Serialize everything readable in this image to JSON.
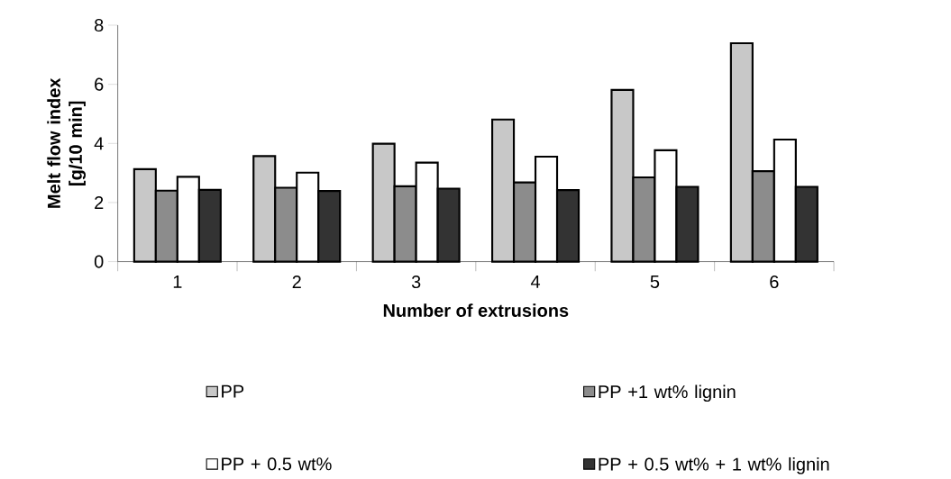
{
  "chart_data": {
    "type": "bar",
    "xlabel": "Number of extrusions",
    "ylabel": "Melt flow index [g/10 min]",
    "categories": [
      "1",
      "2",
      "3",
      "4",
      "5",
      "6"
    ],
    "series": [
      {
        "name": "PP",
        "color": "#c8c8c8",
        "values": [
          3.13,
          3.57,
          3.99,
          4.81,
          5.81,
          7.39
        ]
      },
      {
        "name": "PP +1 wt% lignin",
        "color": "#8c8c8c",
        "values": [
          2.4,
          2.5,
          2.55,
          2.68,
          2.85,
          3.06
        ]
      },
      {
        "name": "PP + 0.5 wt%",
        "color": "#ffffff",
        "values": [
          2.87,
          3.01,
          3.35,
          3.55,
          3.77,
          4.13
        ]
      },
      {
        "name": "PP + 0.5 wt% + 1 wt% lignin",
        "color": "#333333",
        "values": [
          2.43,
          2.39,
          2.47,
          2.42,
          2.53,
          2.53
        ]
      }
    ],
    "ylim": [
      0,
      8
    ],
    "yticks": [
      0,
      2,
      4,
      6,
      8
    ],
    "legend": "bottom",
    "grid": false
  }
}
